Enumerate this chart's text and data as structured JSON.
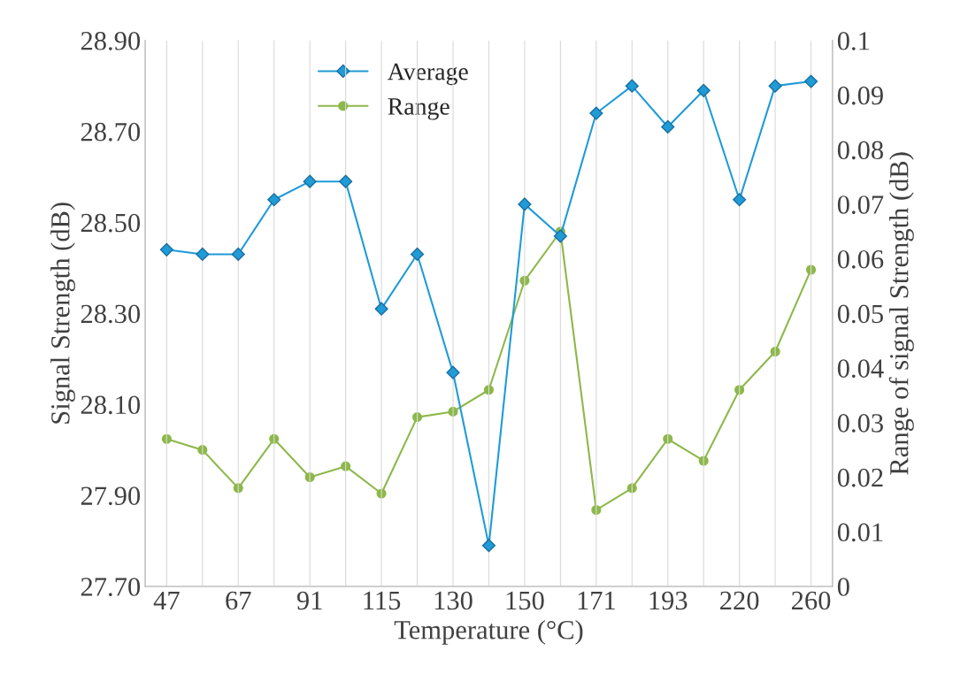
{
  "chart_data": {
    "type": "line",
    "xlabel": "Temperature (°C)",
    "ylabel": "Signal Strength (dB)",
    "y2label": "Range of signal Strength (dB)",
    "categories": [
      "47",
      null,
      "67",
      null,
      "91",
      null,
      "115",
      null,
      "130",
      null,
      "150",
      null,
      "171",
      null,
      "193",
      null,
      "220",
      null,
      "260"
    ],
    "series": [
      {
        "name": "Average",
        "color": "#1f9bd7",
        "marker": "diamond",
        "values": [
          28.44,
          28.43,
          28.43,
          28.55,
          28.59,
          28.59,
          28.31,
          28.43,
          28.17,
          27.79,
          28.54,
          28.47,
          28.74,
          28.8,
          28.71,
          28.79,
          28.55,
          28.8,
          28.81
        ]
      },
      {
        "name": "Range",
        "color": "#8db84a",
        "marker": "circle",
        "axis": "y2",
        "values": [
          0.027,
          0.025,
          0.018,
          0.027,
          0.02,
          0.022,
          0.017,
          0.031,
          0.032,
          0.036,
          0.056,
          0.065,
          0.014,
          0.018,
          0.027,
          0.023,
          0.036,
          0.043,
          0.058
        ]
      }
    ],
    "ylim": [
      27.7,
      28.9
    ],
    "yticks": [
      {
        "value": 27.7,
        "label": "27.70"
      },
      {
        "value": 27.9,
        "label": "27.90"
      },
      {
        "value": 28.1,
        "label": "28.10"
      },
      {
        "value": 28.3,
        "label": "28.30"
      },
      {
        "value": 28.5,
        "label": "28.50"
      },
      {
        "value": 28.7,
        "label": "28.70"
      },
      {
        "value": 28.9,
        "label": "28.90"
      }
    ],
    "y2lim": [
      0,
      0.1
    ],
    "y2ticks": [
      0,
      0.01,
      0.02,
      0.03,
      0.04,
      0.05,
      0.06,
      0.07,
      0.08,
      0.09,
      0.1
    ],
    "grid": "x",
    "legend": "top left",
    "line_style": "solid"
  }
}
